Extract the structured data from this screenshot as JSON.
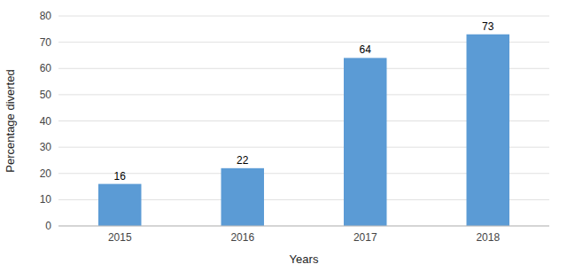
{
  "chart_data": {
    "type": "bar",
    "categories": [
      "2015",
      "2016",
      "2017",
      "2018"
    ],
    "values": [
      16,
      22,
      64,
      73
    ],
    "color": "#5B9BD5",
    "xlabel": "Years",
    "ylabel": "Percentage diverted",
    "ylim": [
      0,
      80
    ],
    "yticks": [
      0,
      10,
      20,
      30,
      40,
      50,
      60,
      70,
      80
    ],
    "grid": true,
    "data_labels": true
  }
}
